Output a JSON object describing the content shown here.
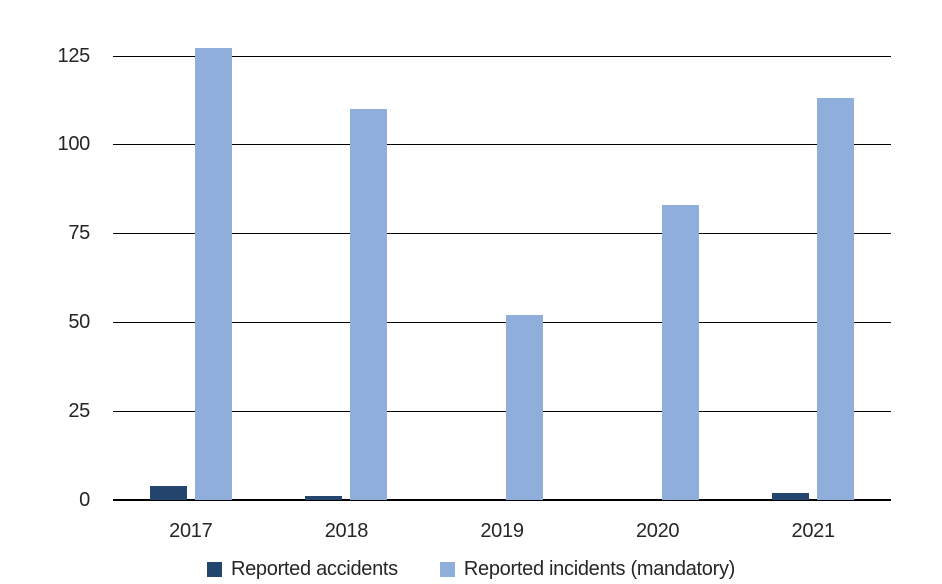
{
  "chart_data": {
    "type": "bar",
    "title": "",
    "xlabel": "",
    "ylabel": "",
    "categories": [
      "2017",
      "2018",
      "2019",
      "2020",
      "2021"
    ],
    "series": [
      {
        "name": "Reported accidents",
        "color": "#24466e",
        "values": [
          4,
          1,
          0,
          0,
          2
        ]
      },
      {
        "name": "Reported incidents (mandatory)",
        "color": "#8faedc",
        "values": [
          127,
          110,
          52,
          83,
          113
        ]
      }
    ],
    "yticks": [
      0,
      25,
      50,
      75,
      100,
      125
    ],
    "ylim": [
      0,
      140
    ],
    "grid": "horizontal",
    "legend_position": "bottom",
    "axis_color": "#000000",
    "text_color": "#262626",
    "background": "#ffffff"
  }
}
